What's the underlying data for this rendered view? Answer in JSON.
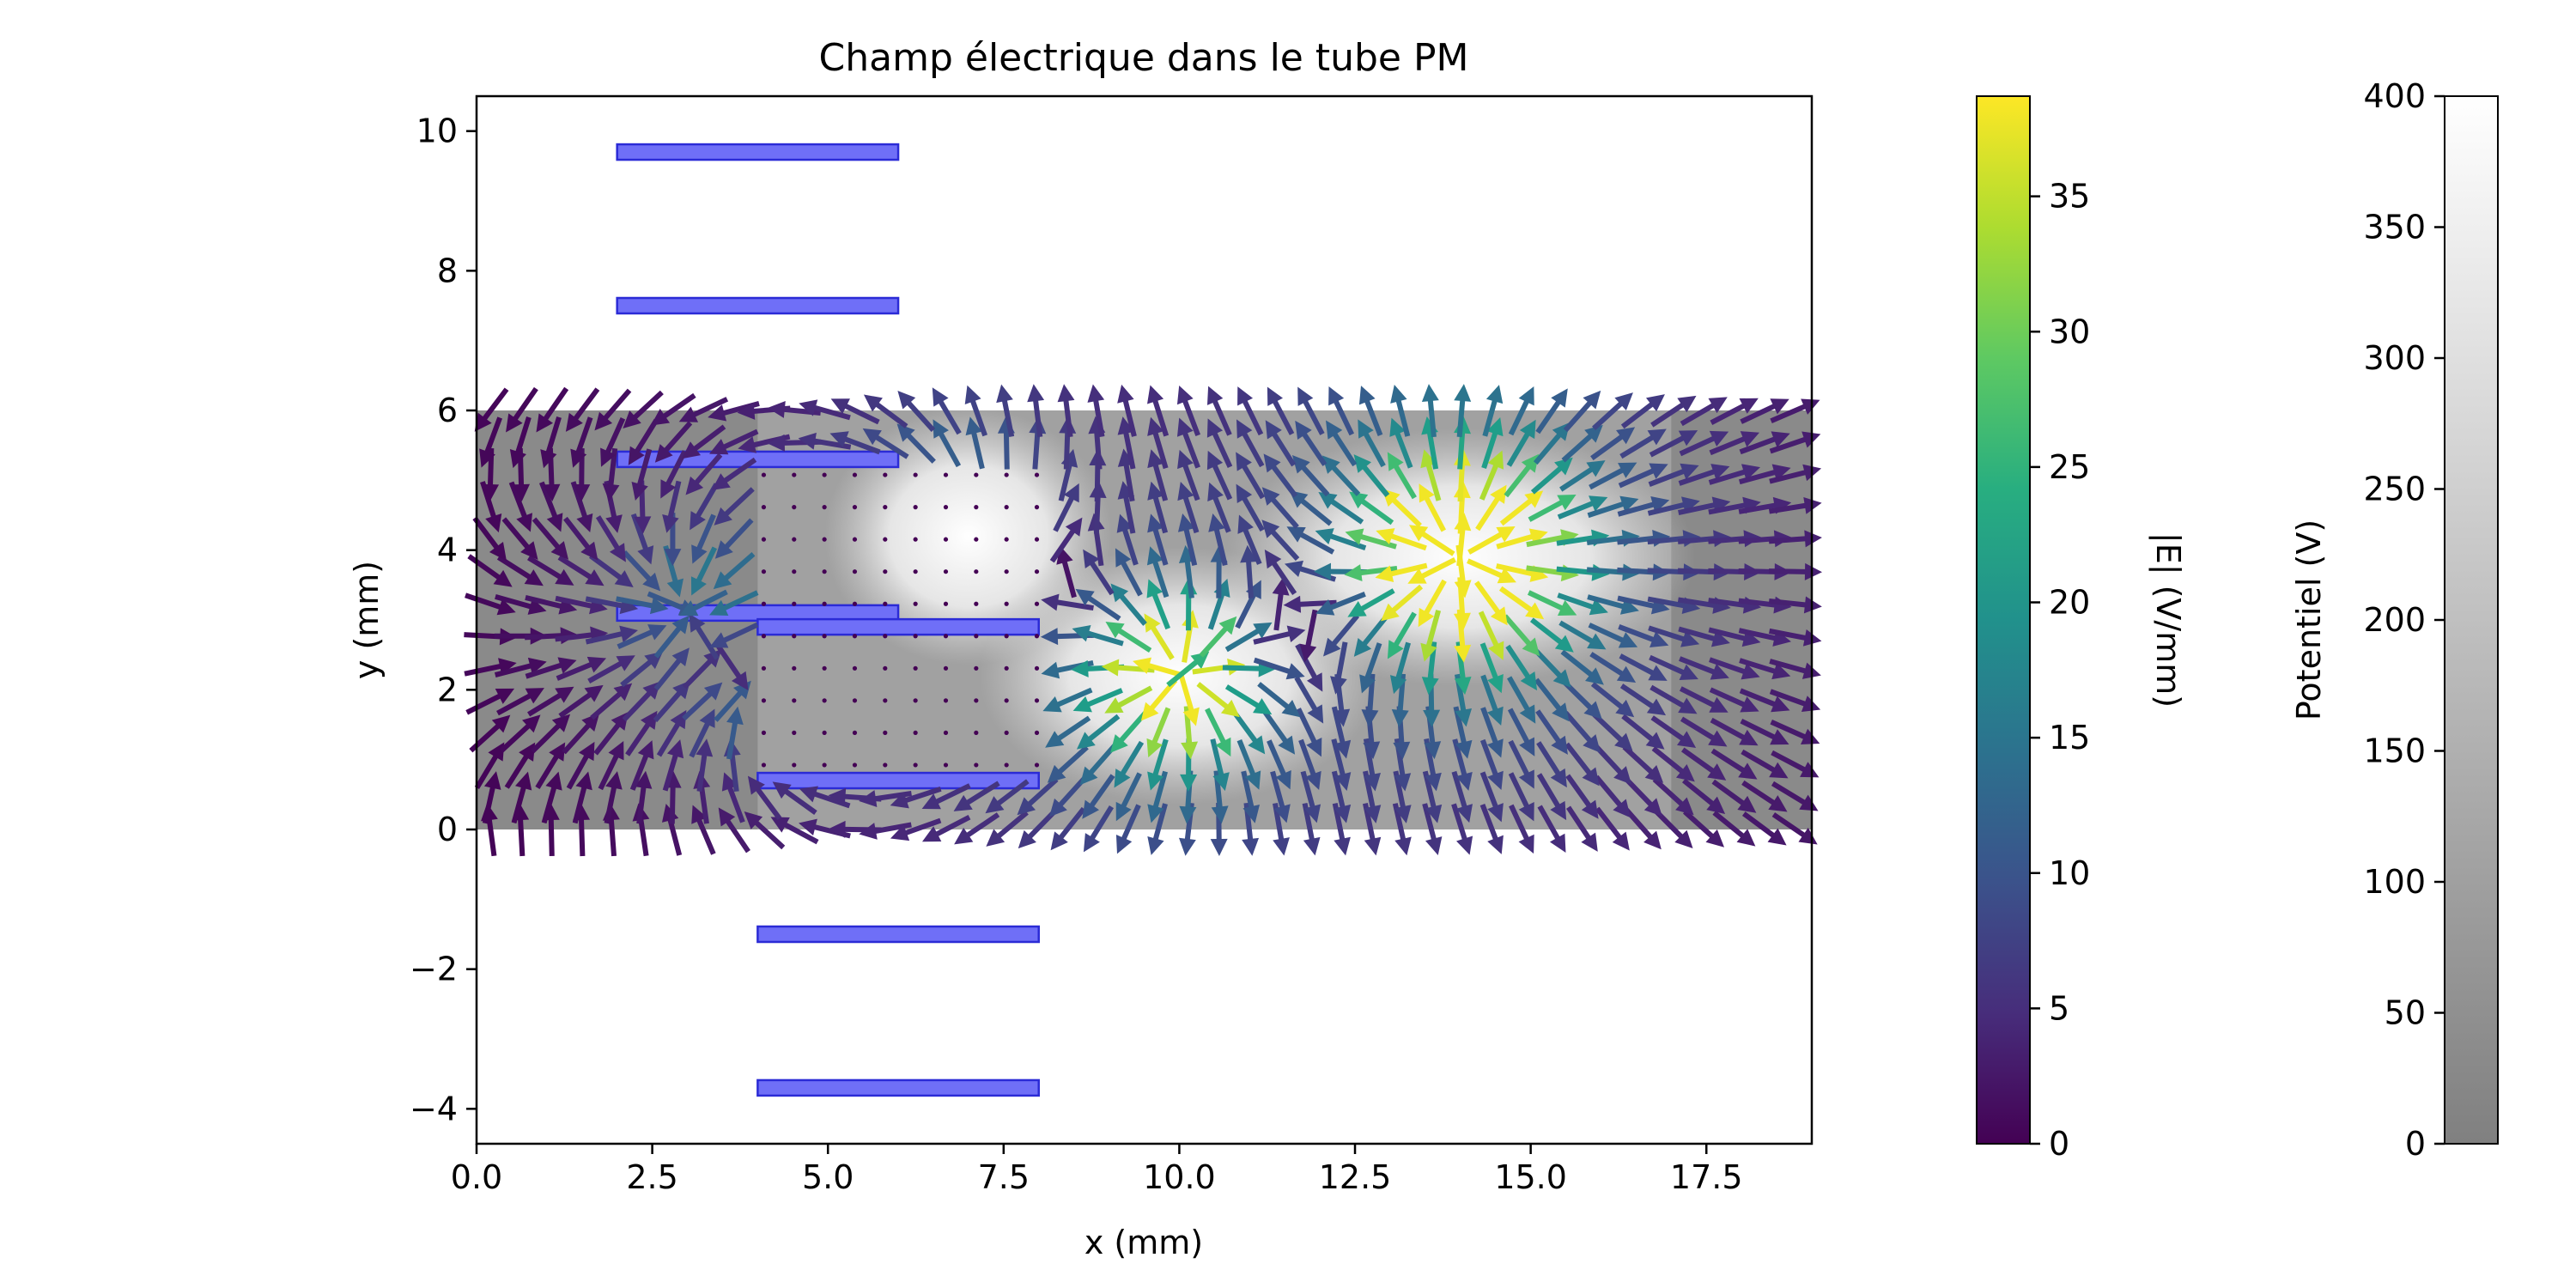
{
  "chart_data": {
    "type": "quiver",
    "title": "Champ électrique dans le tube PM",
    "xlabel": "x (mm)",
    "ylabel": "y (mm)",
    "xlim": [
      0,
      19
    ],
    "ylim": [
      -4.5,
      10.5
    ],
    "xticks": [
      0.0,
      2.5,
      5.0,
      7.5,
      10.0,
      12.5,
      15.0,
      17.5
    ],
    "xtick_labels": [
      "0.0",
      "2.5",
      "5.0",
      "7.5",
      "10.0",
      "12.5",
      "15.0",
      "17.5"
    ],
    "yticks": [
      -4,
      -2,
      0,
      2,
      4,
      6,
      8,
      10
    ],
    "ytick_labels": [
      "−4",
      "−2",
      "0",
      "2",
      "4",
      "6",
      "8",
      "10"
    ],
    "grid": false,
    "potential_region": {
      "x": [
        0,
        19
      ],
      "y": [
        0,
        6
      ]
    },
    "electrodes": [
      {
        "x": [
          2,
          6
        ],
        "y": 9.7
      },
      {
        "x": [
          2,
          6
        ],
        "y": 7.5
      },
      {
        "x": [
          2,
          6
        ],
        "y": 5.3
      },
      {
        "x": [
          2,
          6
        ],
        "y": 3.1
      },
      {
        "x": [
          4,
          8
        ],
        "y": 2.9
      },
      {
        "x": [
          4,
          8
        ],
        "y": 0.7
      },
      {
        "x": [
          4,
          8
        ],
        "y": -1.5
      },
      {
        "x": [
          4,
          8
        ],
        "y": -3.7
      }
    ],
    "hot_spots": [
      {
        "x": [
          12,
          16
        ],
        "y": 3.9,
        "potential": 400
      },
      {
        "x": [
          8.5,
          11.5
        ],
        "y": 2.2,
        "potential": 360
      },
      {
        "x": [
          6.3,
          7.7
        ],
        "y": 4.2,
        "potential": 300
      }
    ],
    "colorbar_E": {
      "label": "|E| (V/mm)",
      "range": [
        0,
        38.7
      ],
      "ticks": [
        0,
        5,
        10,
        15,
        20,
        25,
        30,
        35
      ],
      "tick_labels": [
        "0",
        "5",
        "10",
        "15",
        "20",
        "25",
        "30",
        "35"
      ],
      "colormap": "viridis"
    },
    "colorbar_V": {
      "label": "Potentiel (V)",
      "range": [
        0,
        400
      ],
      "ticks": [
        0,
        50,
        100,
        150,
        200,
        250,
        300,
        350,
        400
      ],
      "tick_labels": [
        "0",
        "50",
        "100",
        "150",
        "200",
        "250",
        "300",
        "350",
        "400"
      ],
      "colormap": "gray (alpha 0.5)"
    }
  },
  "colors": {
    "electrode_fill": "#6f6ff7",
    "electrode_edge": "#2b2bd6",
    "background": "#ffffff"
  }
}
